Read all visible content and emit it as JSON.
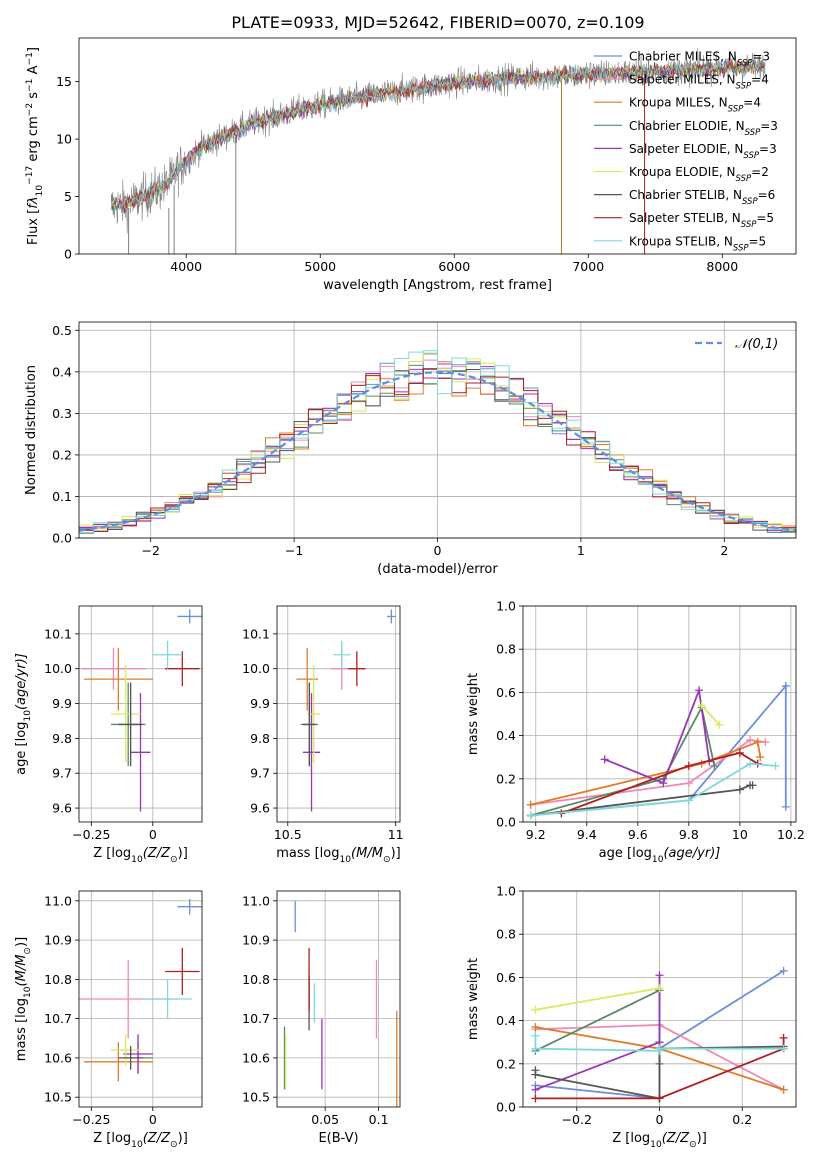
{
  "figure_title": "PLATE=0933, MJD=52642, FIBERID=0070, z=0.109",
  "colors": {
    "Chabrier MILES": "#6b8fd9",
    "Salpeter MILES": "#ee8ab4",
    "Kroupa MILES": "#e07b2a",
    "Chabrier ELODIE": "#5a8a6a",
    "Salpeter ELODIE": "#9b35b8",
    "Kroupa ELODIE": "#d6ec5c",
    "Chabrier STELIB": "#555555",
    "Salpeter STELIB": "#b01e1e",
    "Kroupa STELIB": "#7fd9dc",
    "spectrum": "#808080",
    "gaussian": "#5e8fdc"
  },
  "legend_spectrum": {
    "entries": [
      {
        "name": "Chabrier MILES",
        "nssp": "3"
      },
      {
        "name": "Salpeter MILES",
        "nssp": "4"
      },
      {
        "name": "Kroupa MILES",
        "nssp": "4"
      },
      {
        "name": "Chabrier ELODIE",
        "nssp": "3"
      },
      {
        "name": "Salpeter ELODIE",
        "nssp": "3"
      },
      {
        "name": "Kroupa ELODIE",
        "nssp": "2"
      },
      {
        "name": "Chabrier STELIB",
        "nssp": "6"
      },
      {
        "name": "Salpeter STELIB",
        "nssp": "5"
      },
      {
        "name": "Kroupa STELIB",
        "nssp": "5"
      }
    ]
  },
  "chart_data": [
    {
      "id": "spectrum",
      "type": "line",
      "title": "PLATE=0933, MJD=52642, FIBERID=0070, z=0.109",
      "xlabel": "wavelength [Angstrom, rest frame]",
      "ylabel_parts": [
        "Flux [",
        "f",
        "λ",
        "10",
        "−17",
        " erg cm",
        "−2",
        " s",
        "−1",
        " A",
        "−1",
        "]"
      ],
      "xlim": [
        3200,
        8550
      ],
      "ylim": [
        0,
        18.8
      ],
      "xticks": [
        4000,
        5000,
        6000,
        7000,
        8000
      ],
      "yticks": [
        0,
        5,
        10,
        15
      ],
      "continuum": {
        "x": [
          3450,
          3550,
          3650,
          3750,
          3850,
          3950,
          4100,
          4300,
          4500,
          4800,
          5000,
          5300,
          5600,
          6000,
          6500,
          7000,
          7500,
          8000,
          8300
        ],
        "y": [
          4.2,
          4.3,
          4.8,
          5.4,
          6.0,
          7.5,
          9.2,
          10.3,
          11.4,
          12.4,
          13.0,
          13.6,
          14.2,
          14.9,
          15.4,
          15.6,
          15.9,
          16.2,
          16.3
        ]
      }
    },
    {
      "id": "residuals",
      "type": "histogram",
      "xlabel": "(data-model)/error",
      "ylabel": "Normed distribution",
      "xlim": [
        -2.5,
        2.5
      ],
      "ylim": [
        0,
        0.52
      ],
      "xticks": [
        -2,
        -1,
        0,
        1,
        2
      ],
      "yticks": [
        0,
        0.1,
        0.2,
        0.3,
        0.4,
        0.5
      ],
      "legend": "𝒩(0,1)",
      "bin_width": 0.1
    },
    {
      "id": "age_vs_Z",
      "type": "scatter",
      "xlabel_parts": [
        "Z [log",
        "10",
        "(Z/Z",
        "⊙",
        ")]"
      ],
      "ylabel_parts": [
        "age  [log",
        "10",
        "(age/yr)]"
      ],
      "xlim": [
        -0.3,
        0.2
      ],
      "ylim": [
        9.56,
        10.18
      ],
      "xticks": [
        -0.25,
        0.0
      ],
      "yticks": [
        9.6,
        9.7,
        9.8,
        9.9,
        10.0,
        10.1
      ],
      "points": [
        {
          "series": "Chabrier MILES",
          "x": 0.15,
          "y": 10.15,
          "xerr": 0.05,
          "yerr": 0.02
        },
        {
          "series": "Salpeter MILES",
          "x": -0.16,
          "y": 10.0,
          "xerr": 0.13,
          "yerr": 0.06
        },
        {
          "series": "Kroupa MILES",
          "x": -0.14,
          "y": 9.97,
          "xerr": 0.14,
          "yerr": 0.09
        },
        {
          "series": "Chabrier ELODIE",
          "x": -0.1,
          "y": 9.84,
          "xerr": 0.07,
          "yerr": 0.12
        },
        {
          "series": "Salpeter ELODIE",
          "x": -0.05,
          "y": 9.76,
          "xerr": 0.04,
          "yerr": 0.17
        },
        {
          "series": "Kroupa ELODIE",
          "x": -0.11,
          "y": 9.87,
          "xerr": 0.06,
          "yerr": 0.14
        },
        {
          "series": "Chabrier STELIB",
          "x": -0.09,
          "y": 9.84,
          "xerr": 0.05,
          "yerr": 0.12
        },
        {
          "series": "Salpeter STELIB",
          "x": 0.12,
          "y": 10.0,
          "xerr": 0.07,
          "yerr": 0.05
        },
        {
          "series": "Kroupa STELIB",
          "x": 0.06,
          "y": 10.04,
          "xerr": 0.06,
          "yerr": 0.04
        }
      ]
    },
    {
      "id": "age_vs_mass",
      "type": "scatter",
      "xlabel_parts": [
        "mass [log",
        "10",
        "(M/M",
        "⊙",
        ")]"
      ],
      "xlim": [
        10.45,
        11.02
      ],
      "ylim": [
        9.56,
        10.18
      ],
      "xticks": [
        10.5,
        11.0
      ],
      "yticks": [
        9.6,
        9.7,
        9.8,
        9.9,
        10.0,
        10.1
      ],
      "points": [
        {
          "series": "Chabrier MILES",
          "x": 10.98,
          "y": 10.15,
          "xerr": 0.02,
          "yerr": 0.02
        },
        {
          "series": "Salpeter MILES",
          "x": 10.75,
          "y": 10.0,
          "xerr": 0.05,
          "yerr": 0.06
        },
        {
          "series": "Kroupa MILES",
          "x": 10.59,
          "y": 9.97,
          "xerr": 0.05,
          "yerr": 0.09
        },
        {
          "series": "Chabrier ELODIE",
          "x": 10.6,
          "y": 9.84,
          "xerr": 0.04,
          "yerr": 0.12
        },
        {
          "series": "Salpeter ELODIE",
          "x": 10.61,
          "y": 9.76,
          "xerr": 0.04,
          "yerr": 0.17
        },
        {
          "series": "Kroupa ELODIE",
          "x": 10.62,
          "y": 9.87,
          "xerr": 0.03,
          "yerr": 0.14
        },
        {
          "series": "Chabrier STELIB",
          "x": 10.6,
          "y": 9.84,
          "xerr": 0.03,
          "yerr": 0.12
        },
        {
          "series": "Salpeter STELIB",
          "x": 10.82,
          "y": 10.0,
          "xerr": 0.04,
          "yerr": 0.05
        },
        {
          "series": "Kroupa STELIB",
          "x": 10.75,
          "y": 10.04,
          "xerr": 0.04,
          "yerr": 0.04
        }
      ]
    },
    {
      "id": "mass_weight_vs_age",
      "type": "line",
      "xlabel_parts": [
        "age  [log",
        "10",
        "(age/yr)]"
      ],
      "ylabel": "mass weight",
      "xlim": [
        9.15,
        10.22
      ],
      "ylim": [
        0,
        1
      ],
      "xticks": [
        9.2,
        9.4,
        9.6,
        9.8,
        10.0,
        10.2
      ],
      "yticks": [
        0.0,
        0.2,
        0.4,
        0.6,
        0.8,
        1.0
      ],
      "series": [
        {
          "name": "Chabrier MILES",
          "x": [
            9.18,
            9.8,
            10.18,
            10.18
          ],
          "y": [
            0.03,
            0.1,
            0.63,
            0.07
          ]
        },
        {
          "name": "Salpeter MILES",
          "x": [
            9.18,
            9.8,
            10.04,
            10.1
          ],
          "y": [
            0.08,
            0.18,
            0.38,
            0.37
          ]
        },
        {
          "name": "Kroupa MILES",
          "x": [
            9.18,
            9.85,
            10.07,
            10.08
          ],
          "y": [
            0.08,
            0.27,
            0.37,
            0.3
          ]
        },
        {
          "name": "Chabrier ELODIE",
          "x": [
            9.18,
            9.7,
            9.85,
            9.9
          ],
          "y": [
            0.03,
            0.2,
            0.53,
            0.26
          ]
        },
        {
          "name": "Salpeter ELODIE",
          "x": [
            9.47,
            9.7,
            9.84,
            9.88
          ],
          "y": [
            0.29,
            0.18,
            0.61,
            0.28
          ]
        },
        {
          "name": "Kroupa ELODIE",
          "x": [
            9.85,
            9.92
          ],
          "y": [
            0.54,
            0.45
          ]
        },
        {
          "name": "Chabrier STELIB",
          "x": [
            9.18,
            10.0,
            10.04,
            10.05
          ],
          "y": [
            0.03,
            0.15,
            0.17,
            0.17
          ]
        },
        {
          "name": "Salpeter STELIB",
          "x": [
            9.3,
            9.8,
            10.0,
            10.07
          ],
          "y": [
            0.04,
            0.26,
            0.32,
            0.27
          ]
        },
        {
          "name": "Kroupa STELIB",
          "x": [
            9.18,
            9.8,
            10.04,
            10.14
          ],
          "y": [
            0.03,
            0.1,
            0.27,
            0.26
          ]
        }
      ]
    },
    {
      "id": "mass_vs_Z",
      "type": "scatter",
      "xlabel_parts": [
        "Z [log",
        "10",
        "(Z/Z",
        "⊙",
        ")]"
      ],
      "ylabel_parts": [
        "mass [log",
        "10",
        "(M/M",
        "⊙",
        ")]"
      ],
      "xlim": [
        -0.3,
        0.2
      ],
      "ylim": [
        10.475,
        11.025
      ],
      "xticks": [
        -0.25,
        0.0
      ],
      "yticks": [
        10.5,
        10.6,
        10.7,
        10.8,
        10.9,
        11.0
      ],
      "points": [
        {
          "series": "Chabrier MILES",
          "x": 0.15,
          "y": 10.985,
          "xerr": 0.05,
          "yerr": 0.02
        },
        {
          "series": "Salpeter MILES",
          "x": -0.1,
          "y": 10.75,
          "xerr": 0.2,
          "yerr": 0.1
        },
        {
          "series": "Kroupa MILES",
          "x": -0.14,
          "y": 10.59,
          "xerr": 0.14,
          "yerr": 0.05
        },
        {
          "series": "Chabrier ELODIE",
          "x": -0.06,
          "y": 10.6,
          "xerr": 0.06,
          "yerr": 0.04
        },
        {
          "series": "Salpeter ELODIE",
          "x": -0.06,
          "y": 10.61,
          "xerr": 0.06,
          "yerr": 0.05
        },
        {
          "series": "Kroupa ELODIE",
          "x": -0.11,
          "y": 10.62,
          "xerr": 0.06,
          "yerr": 0.04
        },
        {
          "series": "Chabrier STELIB",
          "x": -0.09,
          "y": 10.6,
          "xerr": 0.05,
          "yerr": 0.03
        },
        {
          "series": "Salpeter STELIB",
          "x": 0.12,
          "y": 10.82,
          "xerr": 0.07,
          "yerr": 0.06
        },
        {
          "series": "Kroupa STELIB",
          "x": 0.06,
          "y": 10.75,
          "xerr": 0.1,
          "yerr": 0.05
        }
      ]
    },
    {
      "id": "mass_vs_ebv",
      "type": "scatter",
      "xlabel": "E(B-V)",
      "xlim": [
        0.005,
        0.12
      ],
      "ylim": [
        10.475,
        11.025
      ],
      "xticks": [
        0.05,
        0.1
      ],
      "yticks": [
        10.5,
        10.6,
        10.7,
        10.8,
        10.9,
        11.0
      ],
      "points": [
        {
          "series": "Chabrier MILES",
          "x": 0.022,
          "y": 10.96,
          "yerr": 0.04
        },
        {
          "series": "Salpeter MILES",
          "x": 0.098,
          "y": 10.75,
          "yerr": 0.1
        },
        {
          "series": "Kroupa MILES",
          "x": 0.117,
          "y": 10.59,
          "yerr": 0.13
        },
        {
          "series": "Chabrier ELODIE",
          "x": 0.012,
          "y": 10.6,
          "yerr": 0.08
        },
        {
          "series": "Salpeter ELODIE",
          "x": 0.047,
          "y": 10.61,
          "yerr": 0.09
        },
        {
          "series": "Kroupa ELODIE",
          "x": 0.013,
          "y": 10.59,
          "yerr": 0.07
        },
        {
          "series": "Chabrier STELIB",
          "x": 0.035,
          "y": 10.74,
          "yerr": 0.07
        },
        {
          "series": "Salpeter STELIB",
          "x": 0.035,
          "y": 10.8,
          "yerr": 0.08
        },
        {
          "series": "Kroupa STELIB",
          "x": 0.04,
          "y": 10.74,
          "yerr": 0.05
        }
      ]
    },
    {
      "id": "mass_weight_vs_Z",
      "type": "line",
      "xlabel_parts": [
        "Z [log",
        "10",
        "(Z/Z",
        "⊙",
        ")]"
      ],
      "ylabel": "mass weight",
      "xlim": [
        -0.33,
        0.33
      ],
      "ylim": [
        0,
        1
      ],
      "xticks": [
        -0.2,
        0.0,
        0.2
      ],
      "yticks": [
        0.0,
        0.2,
        0.4,
        0.6,
        0.8,
        1.0
      ],
      "series": [
        {
          "name": "Chabrier MILES",
          "x": [
            -0.3,
            0.0,
            0.0,
            0.3
          ],
          "y": [
            0.1,
            0.04,
            0.27,
            0.63
          ]
        },
        {
          "name": "Salpeter MILES",
          "x": [
            -0.3,
            0.0,
            0.3
          ],
          "y": [
            0.36,
            0.38,
            0.08
          ]
        },
        {
          "name": "Kroupa MILES",
          "x": [
            -0.3,
            0.0,
            0.3
          ],
          "y": [
            0.37,
            0.27,
            0.08
          ]
        },
        {
          "name": "Chabrier ELODIE",
          "x": [
            -0.3,
            0.0,
            0.0
          ],
          "y": [
            0.26,
            0.54,
            0.2
          ]
        },
        {
          "name": "Salpeter ELODIE",
          "x": [
            -0.3,
            0.0,
            0.0
          ],
          "y": [
            0.08,
            0.3,
            0.61
          ]
        },
        {
          "name": "Kroupa ELODIE",
          "x": [
            -0.3,
            0.0
          ],
          "y": [
            0.45,
            0.55
          ]
        },
        {
          "name": "Chabrier STELIB",
          "x": [
            -0.3,
            -0.3,
            0.0,
            0.0,
            0.3
          ],
          "y": [
            0.17,
            0.15,
            0.04,
            0.27,
            0.28
          ]
        },
        {
          "name": "Salpeter STELIB",
          "x": [
            -0.3,
            0.0,
            0.3,
            0.3
          ],
          "y": [
            0.04,
            0.04,
            0.27,
            0.32
          ]
        },
        {
          "name": "Kroupa STELIB",
          "x": [
            -0.3,
            -0.3,
            0.0,
            0.0,
            0.3
          ],
          "y": [
            0.33,
            0.27,
            0.26,
            0.27,
            0.27
          ]
        }
      ]
    }
  ]
}
